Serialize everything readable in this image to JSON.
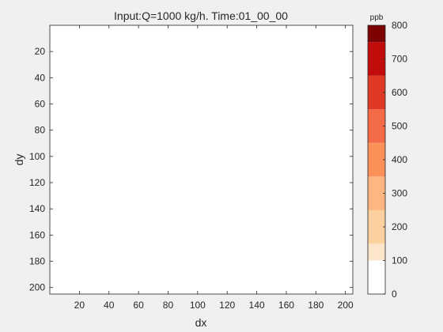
{
  "chart_data": {
    "type": "heatmap",
    "title": "Input:Q=1000 kg/h. Time:01_00_00",
    "xlabel": "dx",
    "ylabel": "dy",
    "xlim": [
      0,
      205
    ],
    "ylim": [
      0,
      205
    ],
    "y_reversed": true,
    "x_ticks": [
      20,
      40,
      60,
      80,
      100,
      120,
      140,
      160,
      180,
      200
    ],
    "y_ticks": [
      20,
      40,
      60,
      80,
      100,
      120,
      140,
      160,
      180,
      200
    ],
    "values": [],
    "colorbar": {
      "unit_label": "ppb",
      "min": 0,
      "max": 800,
      "ticks": [
        0,
        100,
        200,
        300,
        400,
        500,
        600,
        700,
        800
      ],
      "levels": [
        {
          "from": 0,
          "to": 100,
          "color": "#ffffff"
        },
        {
          "from": 100,
          "to": 150,
          "color": "#fde6cc"
        },
        {
          "from": 150,
          "to": 250,
          "color": "#fdd19f"
        },
        {
          "from": 250,
          "to": 350,
          "color": "#fdb67f"
        },
        {
          "from": 350,
          "to": 450,
          "color": "#fc9059"
        },
        {
          "from": 450,
          "to": 550,
          "color": "#f26a46"
        },
        {
          "from": 550,
          "to": 650,
          "color": "#de3a25"
        },
        {
          "from": 650,
          "to": 750,
          "color": "#c20b0b"
        },
        {
          "from": 750,
          "to": 800,
          "color": "#7d0303"
        }
      ]
    },
    "grid": false
  }
}
